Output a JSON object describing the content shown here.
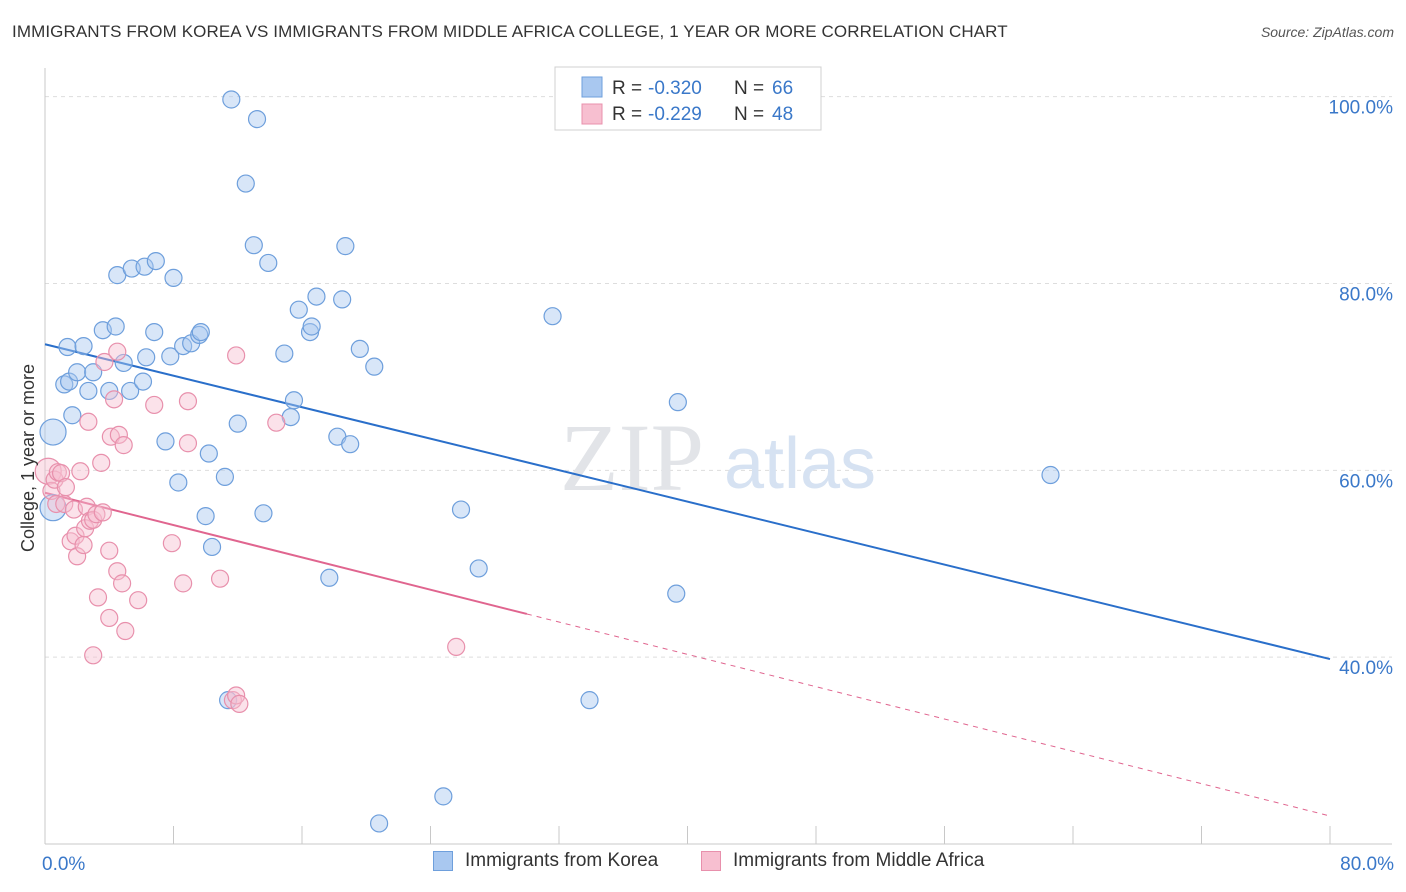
{
  "title": "IMMIGRANTS FROM KOREA VS IMMIGRANTS FROM MIDDLE AFRICA COLLEGE, 1 YEAR OR MORE CORRELATION CHART",
  "source": "Source: ZipAtlas.com",
  "watermark": {
    "zip": "ZIP",
    "atlas": "atlas"
  },
  "colors": {
    "blue_fill": "#a9c8f0",
    "blue_stroke": "#6e9fdc",
    "blue_line": "#2a6fca",
    "pink_fill": "#f7bfd0",
    "pink_stroke": "#e890ac",
    "pink_line": "#e0658f",
    "axis_text": "#3a78c9",
    "grid": "#dddddd"
  },
  "legend_top": {
    "rows": [
      {
        "r_label": "R =",
        "r_value": "-0.320",
        "n_label": "N =",
        "n_value": "66"
      },
      {
        "r_label": "R =",
        "r_value": "-0.229",
        "n_label": "N =",
        "n_value": "48"
      }
    ]
  },
  "legend_bottom": {
    "items": [
      {
        "label": "Immigrants from Korea"
      },
      {
        "label": "Immigrants from Middle Africa"
      }
    ]
  },
  "chart_data": {
    "type": "scatter",
    "xlabel": "",
    "ylabel": "College, 1 year or more",
    "xlim": [
      0,
      80
    ],
    "ylim": [
      20,
      102
    ],
    "x_tick_labels": [
      "0.0%",
      "80.0%"
    ],
    "y_ticks": [
      40,
      60,
      80,
      100
    ],
    "y_tick_labels": [
      "40.0%",
      "60.0%",
      "80.0%",
      "100.0%"
    ],
    "grid": true,
    "legend_position": "top-center",
    "series": [
      {
        "name": "Immigrants from Korea",
        "R": -0.32,
        "N": 66,
        "trend": {
          "x0": 0,
          "y0": 73.5,
          "x1": 80,
          "y1": 39.8,
          "solid_until": 80
        },
        "points": [
          {
            "x": 0.5,
            "y": 64.1,
            "s": "l"
          },
          {
            "x": 0.5,
            "y": 56.0,
            "s": "l"
          },
          {
            "x": 1.2,
            "y": 69.2
          },
          {
            "x": 1.5,
            "y": 69.5
          },
          {
            "x": 1.4,
            "y": 73.2
          },
          {
            "x": 1.7,
            "y": 65.9
          },
          {
            "x": 2.0,
            "y": 70.5
          },
          {
            "x": 2.4,
            "y": 73.3
          },
          {
            "x": 2.7,
            "y": 68.5
          },
          {
            "x": 3.0,
            "y": 70.5
          },
          {
            "x": 3.6,
            "y": 75.0
          },
          {
            "x": 4.0,
            "y": 68.5
          },
          {
            "x": 4.4,
            "y": 75.4
          },
          {
            "x": 4.5,
            "y": 80.9
          },
          {
            "x": 4.9,
            "y": 71.5
          },
          {
            "x": 5.3,
            "y": 68.5
          },
          {
            "x": 5.4,
            "y": 81.6
          },
          {
            "x": 6.1,
            "y": 69.5
          },
          {
            "x": 6.2,
            "y": 81.8
          },
          {
            "x": 6.3,
            "y": 72.1
          },
          {
            "x": 6.9,
            "y": 82.4
          },
          {
            "x": 6.8,
            "y": 74.8
          },
          {
            "x": 7.5,
            "y": 63.1
          },
          {
            "x": 7.8,
            "y": 72.2
          },
          {
            "x": 8.0,
            "y": 80.6
          },
          {
            "x": 8.3,
            "y": 58.7
          },
          {
            "x": 8.6,
            "y": 73.3
          },
          {
            "x": 9.1,
            "y": 73.6
          },
          {
            "x": 9.6,
            "y": 74.5
          },
          {
            "x": 9.7,
            "y": 74.8
          },
          {
            "x": 10.0,
            "y": 55.1
          },
          {
            "x": 10.2,
            "y": 61.8
          },
          {
            "x": 10.4,
            "y": 51.8
          },
          {
            "x": 11.2,
            "y": 59.3
          },
          {
            "x": 11.4,
            "y": 35.4
          },
          {
            "x": 11.6,
            "y": 99.7
          },
          {
            "x": 12.0,
            "y": 65.0
          },
          {
            "x": 12.5,
            "y": 90.7
          },
          {
            "x": 13.0,
            "y": 84.1
          },
          {
            "x": 13.2,
            "y": 97.6
          },
          {
            "x": 13.6,
            "y": 55.4
          },
          {
            "x": 13.9,
            "y": 82.2
          },
          {
            "x": 14.9,
            "y": 72.5
          },
          {
            "x": 15.3,
            "y": 65.7
          },
          {
            "x": 15.5,
            "y": 67.5
          },
          {
            "x": 15.8,
            "y": 77.2
          },
          {
            "x": 16.5,
            "y": 74.8
          },
          {
            "x": 16.6,
            "y": 75.4
          },
          {
            "x": 16.9,
            "y": 78.6
          },
          {
            "x": 17.7,
            "y": 48.5
          },
          {
            "x": 18.2,
            "y": 63.6
          },
          {
            "x": 18.5,
            "y": 78.3
          },
          {
            "x": 18.7,
            "y": 84.0
          },
          {
            "x": 19.0,
            "y": 62.8
          },
          {
            "x": 19.6,
            "y": 73.0
          },
          {
            "x": 20.5,
            "y": 71.1
          },
          {
            "x": 20.8,
            "y": 22.2
          },
          {
            "x": 24.8,
            "y": 25.1
          },
          {
            "x": 25.9,
            "y": 55.8
          },
          {
            "x": 27.0,
            "y": 49.5
          },
          {
            "x": 31.6,
            "y": 76.5
          },
          {
            "x": 33.9,
            "y": 35.4
          },
          {
            "x": 39.3,
            "y": 46.8
          },
          {
            "x": 39.4,
            "y": 67.3
          },
          {
            "x": 62.6,
            "y": 59.5
          }
        ]
      },
      {
        "name": "Immigrants from Middle Africa",
        "R": -0.229,
        "N": 48,
        "trend": {
          "x0": 0,
          "y0": 57.6,
          "x1": 80,
          "y1": 23.0,
          "solid_until": 30
        },
        "points": [
          {
            "x": 0.2,
            "y": 59.9,
            "s": "l"
          },
          {
            "x": 0.4,
            "y": 57.8
          },
          {
            "x": 0.6,
            "y": 59.0
          },
          {
            "x": 0.7,
            "y": 56.4
          },
          {
            "x": 0.8,
            "y": 59.8
          },
          {
            "x": 1.0,
            "y": 59.7
          },
          {
            "x": 1.2,
            "y": 56.4
          },
          {
            "x": 1.3,
            "y": 58.2
          },
          {
            "x": 1.6,
            "y": 52.4
          },
          {
            "x": 1.8,
            "y": 55.8
          },
          {
            "x": 1.9,
            "y": 53.0
          },
          {
            "x": 2.0,
            "y": 50.8
          },
          {
            "x": 2.2,
            "y": 59.9
          },
          {
            "x": 2.4,
            "y": 52.0
          },
          {
            "x": 2.5,
            "y": 53.8
          },
          {
            "x": 2.6,
            "y": 56.1
          },
          {
            "x": 2.7,
            "y": 65.2
          },
          {
            "x": 2.8,
            "y": 54.6
          },
          {
            "x": 3.0,
            "y": 40.2
          },
          {
            "x": 3.0,
            "y": 54.7
          },
          {
            "x": 3.2,
            "y": 55.3
          },
          {
            "x": 3.3,
            "y": 46.4
          },
          {
            "x": 3.5,
            "y": 60.8
          },
          {
            "x": 3.6,
            "y": 55.5
          },
          {
            "x": 3.7,
            "y": 71.6
          },
          {
            "x": 4.0,
            "y": 44.2
          },
          {
            "x": 4.0,
            "y": 51.4
          },
          {
            "x": 4.1,
            "y": 63.6
          },
          {
            "x": 4.3,
            "y": 67.6
          },
          {
            "x": 4.5,
            "y": 72.7
          },
          {
            "x": 4.5,
            "y": 49.2
          },
          {
            "x": 4.6,
            "y": 63.8
          },
          {
            "x": 4.8,
            "y": 47.9
          },
          {
            "x": 4.9,
            "y": 62.7
          },
          {
            "x": 5.0,
            "y": 42.8
          },
          {
            "x": 5.8,
            "y": 46.1
          },
          {
            "x": 6.8,
            "y": 67.0
          },
          {
            "x": 7.9,
            "y": 52.2
          },
          {
            "x": 8.6,
            "y": 47.9
          },
          {
            "x": 8.9,
            "y": 62.9
          },
          {
            "x": 8.9,
            "y": 67.4
          },
          {
            "x": 10.9,
            "y": 48.4
          },
          {
            "x": 11.7,
            "y": 35.4
          },
          {
            "x": 11.9,
            "y": 35.9
          },
          {
            "x": 11.9,
            "y": 72.3
          },
          {
            "x": 12.1,
            "y": 35.0
          },
          {
            "x": 14.4,
            "y": 65.1
          },
          {
            "x": 25.6,
            "y": 41.1
          }
        ]
      }
    ]
  }
}
